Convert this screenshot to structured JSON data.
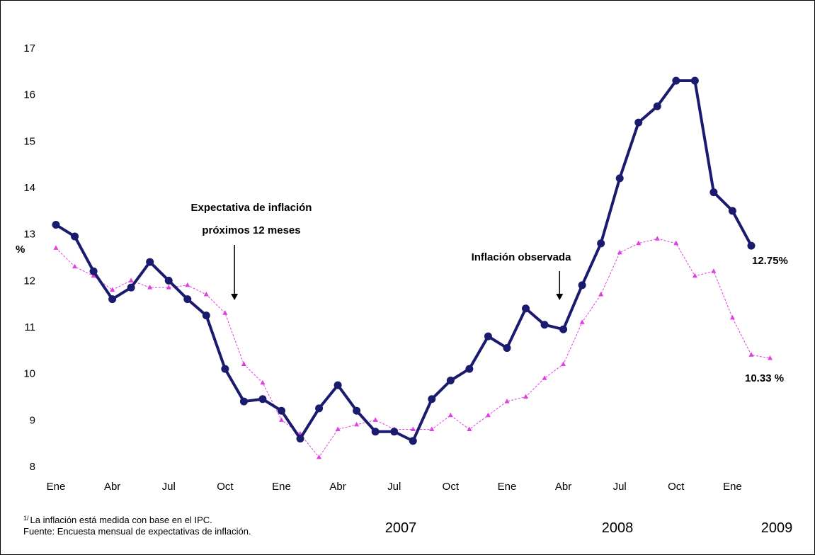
{
  "chart_data": {
    "type": "line",
    "ylabel": "%",
    "ylim": [
      8,
      17
    ],
    "yticks": [
      8,
      9,
      10,
      11,
      12,
      13,
      14,
      15,
      16,
      17
    ],
    "x_tick_labels": [
      {
        "index": 0,
        "label": "Ene"
      },
      {
        "index": 3,
        "label": "Abr"
      },
      {
        "index": 6,
        "label": "Jul"
      },
      {
        "index": 9,
        "label": "Oct"
      },
      {
        "index": 12,
        "label": "Ene"
      },
      {
        "index": 15,
        "label": "Abr"
      },
      {
        "index": 18,
        "label": "Jul"
      },
      {
        "index": 21,
        "label": "Oct"
      },
      {
        "index": 24,
        "label": "Ene"
      },
      {
        "index": 27,
        "label": "Abr"
      },
      {
        "index": 30,
        "label": "Jul"
      },
      {
        "index": 33,
        "label": "Oct"
      },
      {
        "index": 36,
        "label": "Ene"
      }
    ],
    "years": [
      "2007",
      "2008",
      "2009"
    ],
    "series": [
      {
        "key": "observed",
        "color": "#1a1a6e",
        "values": [
          13.2,
          12.95,
          12.2,
          11.6,
          11.85,
          12.4,
          12.0,
          11.6,
          11.25,
          10.1,
          9.4,
          9.45,
          9.2,
          8.6,
          9.25,
          9.75,
          9.2,
          8.75,
          8.75,
          8.55,
          9.45,
          9.85,
          10.1,
          10.8,
          10.55,
          11.4,
          11.05,
          10.95,
          11.9,
          12.8,
          14.2,
          15.4,
          15.75,
          16.3,
          16.3,
          13.9,
          13.5,
          12.75
        ],
        "end_label": "12.75%"
      },
      {
        "key": "expected",
        "color": "#e040e0",
        "values": [
          12.7,
          12.3,
          12.1,
          11.8,
          12.0,
          11.85,
          11.85,
          11.9,
          11.7,
          11.3,
          10.2,
          9.8,
          9.0,
          8.7,
          8.2,
          8.8,
          8.9,
          9.0,
          8.8,
          8.8,
          8.8,
          9.1,
          8.8,
          9.1,
          9.4,
          9.5,
          9.9,
          10.2,
          11.1,
          11.7,
          12.6,
          12.8,
          12.9,
          12.8,
          12.1,
          12.2,
          11.2,
          10.4,
          10.33
        ],
        "end_label": "10.33 %"
      }
    ],
    "annotations": [
      {
        "key": "expected",
        "lines": [
          "Expectativa de inflación",
          "próximos 12 meses"
        ],
        "arrow_index": 9.5
      },
      {
        "key": "observed",
        "lines": [
          "Inflación observada"
        ],
        "arrow_index": 26.8
      }
    ],
    "footnote": {
      "superscript": "1/",
      "line1": "La inflación está medida con base en el IPC.",
      "line2": "Fuente: Encuesta mensual de expectativas de inflación."
    }
  }
}
